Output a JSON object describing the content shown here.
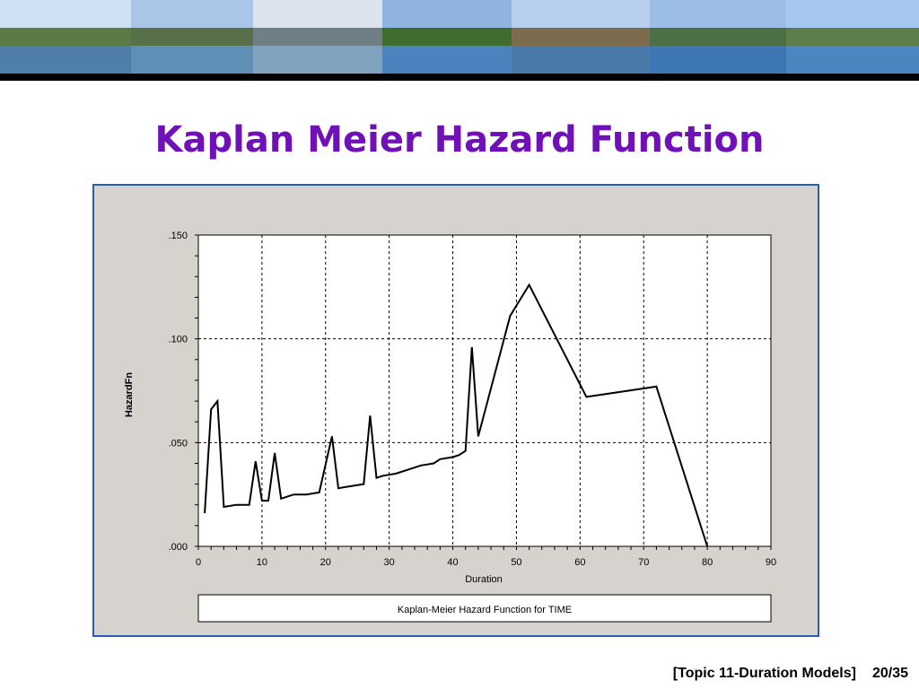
{
  "slide": {
    "title": "Kaplan Meier Hazard Function",
    "footer_topic": "[Topic 11-Duration Models]",
    "page_number": "20/35"
  },
  "banner": {
    "photos": [
      {
        "name": "banner-photo-hillside-village",
        "sky": "#cfe0f2",
        "land": "#5b7a45",
        "water": "#4f7fa8"
      },
      {
        "name": "banner-photo-lake-mountains",
        "sky": "#a9c6e8",
        "land": "#58704a",
        "water": "#5f8fb4"
      },
      {
        "name": "banner-photo-lakeside-promenade",
        "sky": "#dbe4ee",
        "land": "#707f86",
        "water": "#7fa2bf"
      },
      {
        "name": "banner-photo-palm-garden",
        "sky": "#8fb4e0",
        "land": "#3f6d2f",
        "water": "#4c82bd"
      },
      {
        "name": "banner-photo-rocky-peak",
        "sky": "#b8d0ee",
        "land": "#7d6b4e",
        "water": "#4a79a9"
      },
      {
        "name": "banner-photo-lake-panorama",
        "sky": "#9cbde6",
        "land": "#4d6f45",
        "water": "#3f77b6"
      },
      {
        "name": "banner-photo-lakeside-walkway",
        "sky": "#a6c8f0",
        "land": "#5d7e4a",
        "water": "#4d85c1"
      }
    ]
  },
  "chart_data": {
    "type": "line",
    "title": "",
    "xlabel": "Duration",
    "ylabel": "HazardFn",
    "legend_text": "Kaplan-Meier Hazard Function for TIME",
    "xlim": [
      0,
      90
    ],
    "ylim": [
      0,
      0.15
    ],
    "x_ticks": [
      0,
      10,
      20,
      30,
      40,
      50,
      60,
      70,
      80,
      90
    ],
    "x_tick_labels": [
      "0",
      "10",
      "20",
      "30",
      "40",
      "50",
      "60",
      "70",
      "80",
      "90"
    ],
    "y_ticks": [
      0,
      0.05,
      0.1,
      0.15
    ],
    "y_tick_labels": [
      ".000",
      ".050",
      ".100",
      ".150"
    ],
    "grid": true,
    "series": [
      {
        "points": [
          [
            1,
            0.016
          ],
          [
            2,
            0.066
          ],
          [
            3,
            0.07
          ],
          [
            4,
            0.019
          ],
          [
            6,
            0.02
          ],
          [
            8,
            0.02
          ],
          [
            9,
            0.041
          ],
          [
            10,
            0.022
          ],
          [
            11,
            0.022
          ],
          [
            12,
            0.045
          ],
          [
            13,
            0.023
          ],
          [
            15,
            0.025
          ],
          [
            17,
            0.025
          ],
          [
            19,
            0.026
          ],
          [
            21,
            0.053
          ],
          [
            22,
            0.028
          ],
          [
            24,
            0.029
          ],
          [
            26,
            0.03
          ],
          [
            27,
            0.063
          ],
          [
            28,
            0.033
          ],
          [
            29,
            0.034
          ],
          [
            31,
            0.035
          ],
          [
            33,
            0.037
          ],
          [
            35,
            0.039
          ],
          [
            37,
            0.04
          ],
          [
            38,
            0.042
          ],
          [
            40,
            0.043
          ],
          [
            41,
            0.044
          ],
          [
            42,
            0.046
          ],
          [
            43,
            0.096
          ],
          [
            44,
            0.053
          ],
          [
            49,
            0.111
          ],
          [
            52,
            0.126
          ],
          [
            61,
            0.072
          ],
          [
            72,
            0.077
          ],
          [
            80,
            0.0
          ]
        ]
      }
    ]
  }
}
